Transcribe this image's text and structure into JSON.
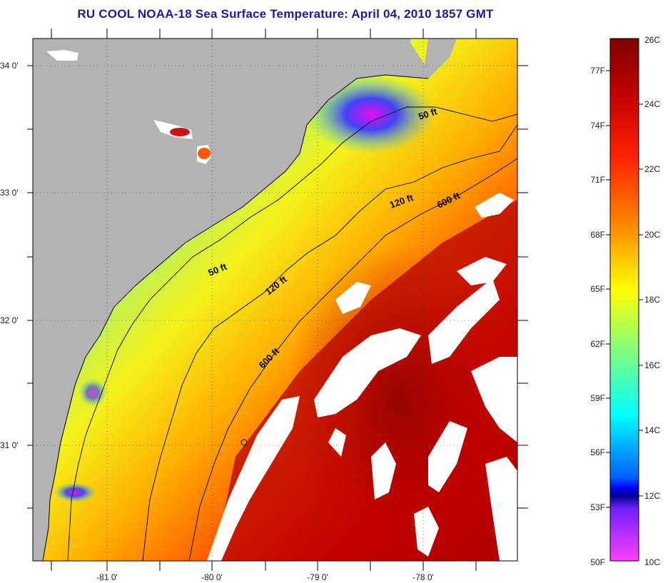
{
  "title": "RU COOL  NOAA-18  Sea Surface Temperature:  April 04, 2010 1857 GMT",
  "map": {
    "lat_ticks": [
      "34 0'",
      "33 0'",
      "32 0'",
      "31 0'"
    ],
    "lon_ticks": [
      "-81 0'",
      "-80 0'",
      "-79 0'",
      "-78 0'"
    ],
    "contour_labels": [
      "50 ft",
      "120 ft",
      "600 ft",
      "50 ft",
      "120 ft",
      "600 ft"
    ],
    "colors": {
      "land": "#b3b3b3",
      "cloud": "#ffffff",
      "coast": "#000000"
    }
  },
  "colorbar": {
    "celsius_labels": [
      "26C",
      "24C",
      "22C",
      "20C",
      "18C",
      "16C",
      "14C",
      "12C",
      "10C"
    ],
    "fahrenheit_labels": [
      "77F",
      "74F",
      "71F",
      "68F",
      "65F",
      "62F",
      "59F",
      "56F",
      "53F",
      "50F"
    ],
    "range_c": [
      10,
      26
    ]
  }
}
